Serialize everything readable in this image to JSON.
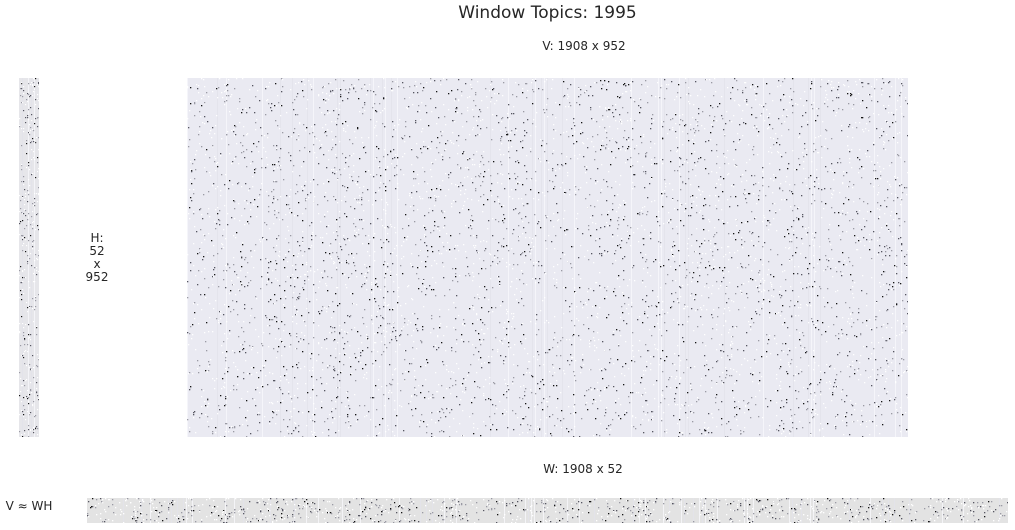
{
  "chart_data": {
    "type": "heatmap",
    "title": "Window Topics: 1995",
    "colormap": "greys",
    "background_color": "#eaeaf2",
    "panels": [
      {
        "name": "V",
        "label": "V: 1908 x 952",
        "rows": 1908,
        "cols": 952,
        "density": "sparse"
      },
      {
        "name": "H",
        "label_lines": [
          "H:",
          "52",
          "x",
          "952"
        ],
        "rows": 52,
        "cols": 952,
        "density": "sparse"
      },
      {
        "name": "W",
        "label": "W: 1908 x 52",
        "rows": 1908,
        "cols": 52,
        "density": "sparse"
      }
    ],
    "equation": "V ≈ WH"
  }
}
